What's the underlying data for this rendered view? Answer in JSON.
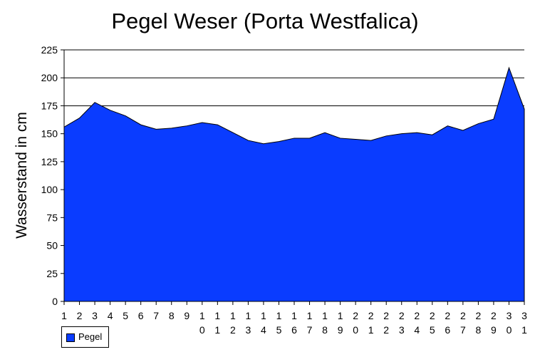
{
  "chart_data": {
    "type": "area",
    "title": "Pegel Weser (Porta Westfalica)",
    "xlabel": "",
    "ylabel": "Wasserstand in cm",
    "categories": [
      "1",
      "2",
      "3",
      "4",
      "5",
      "6",
      "7",
      "8",
      "9",
      "10",
      "11",
      "12",
      "13",
      "14",
      "15",
      "16",
      "17",
      "18",
      "19",
      "20",
      "21",
      "22",
      "23",
      "24",
      "25",
      "26",
      "27",
      "28",
      "29",
      "30",
      "31"
    ],
    "series": [
      {
        "name": "Pegel",
        "color": "#0a3cff",
        "values": [
          156,
          164,
          178,
          171,
          166,
          158,
          154,
          155,
          157,
          160,
          158,
          151,
          144,
          141,
          143,
          146,
          146,
          151,
          146,
          145,
          144,
          148,
          150,
          151,
          149,
          157,
          153,
          159,
          163,
          209,
          172
        ]
      }
    ],
    "ylim": [
      0,
      225
    ],
    "yticks": [
      0,
      25,
      50,
      75,
      100,
      125,
      150,
      175,
      200,
      225
    ],
    "gridlines": [
      175,
      200,
      225
    ],
    "legend_position": "bottom-left"
  }
}
